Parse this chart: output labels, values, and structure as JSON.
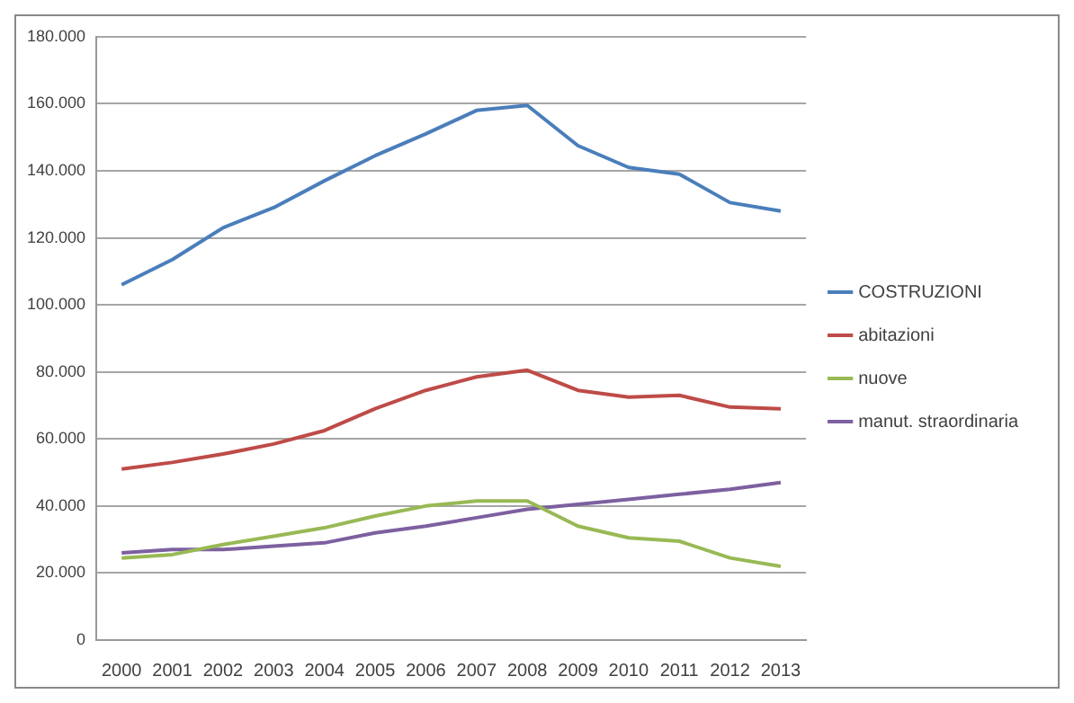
{
  "chart_data": {
    "type": "line",
    "categories": [
      "2000",
      "2001",
      "2002",
      "2003",
      "2004",
      "2005",
      "2006",
      "2007",
      "2008",
      "2009",
      "2010",
      "2011",
      "2012",
      "2013"
    ],
    "series": [
      {
        "name": "COSTRUZIONI",
        "color": "#4a7ebb",
        "values": [
          106000,
          113500,
          123000,
          129000,
          137000,
          144500,
          151000,
          158000,
          159500,
          147500,
          141000,
          139000,
          130500,
          128000
        ]
      },
      {
        "name": "abitazioni",
        "color": "#be4b48",
        "values": [
          51000,
          53000,
          55500,
          58500,
          62500,
          69000,
          74500,
          78500,
          80500,
          74500,
          72500,
          73000,
          69500,
          69000
        ]
      },
      {
        "name": "nuove",
        "color": "#98b954",
        "values": [
          24500,
          25500,
          28500,
          31000,
          33500,
          37000,
          40000,
          41500,
          41500,
          34000,
          30500,
          29500,
          24500,
          22000
        ]
      },
      {
        "name": "manut. straordinaria",
        "color": "#7d60a0",
        "values": [
          26000,
          27000,
          27000,
          28000,
          29000,
          32000,
          34000,
          36500,
          39000,
          40500,
          42000,
          43500,
          45000,
          47000
        ]
      }
    ],
    "ylim": [
      0,
      180000
    ],
    "yticks": [
      0,
      {
        "value": 20000,
        "label": "20.000"
      },
      {
        "value": 40000,
        "label": "40.000"
      },
      {
        "value": 60000,
        "label": "60.000"
      },
      {
        "value": 80000,
        "label": "80.000"
      },
      {
        "value": 100000,
        "label": "100.000"
      },
      {
        "value": 120000,
        "label": "120.000"
      },
      {
        "value": 140000,
        "label": "140.000"
      },
      {
        "value": 160000,
        "label": "160.000"
      },
      {
        "value": 180000,
        "label": "180.000"
      }
    ],
    "grid": "y",
    "legend": "right",
    "marker": "none",
    "line_style": "solid"
  }
}
